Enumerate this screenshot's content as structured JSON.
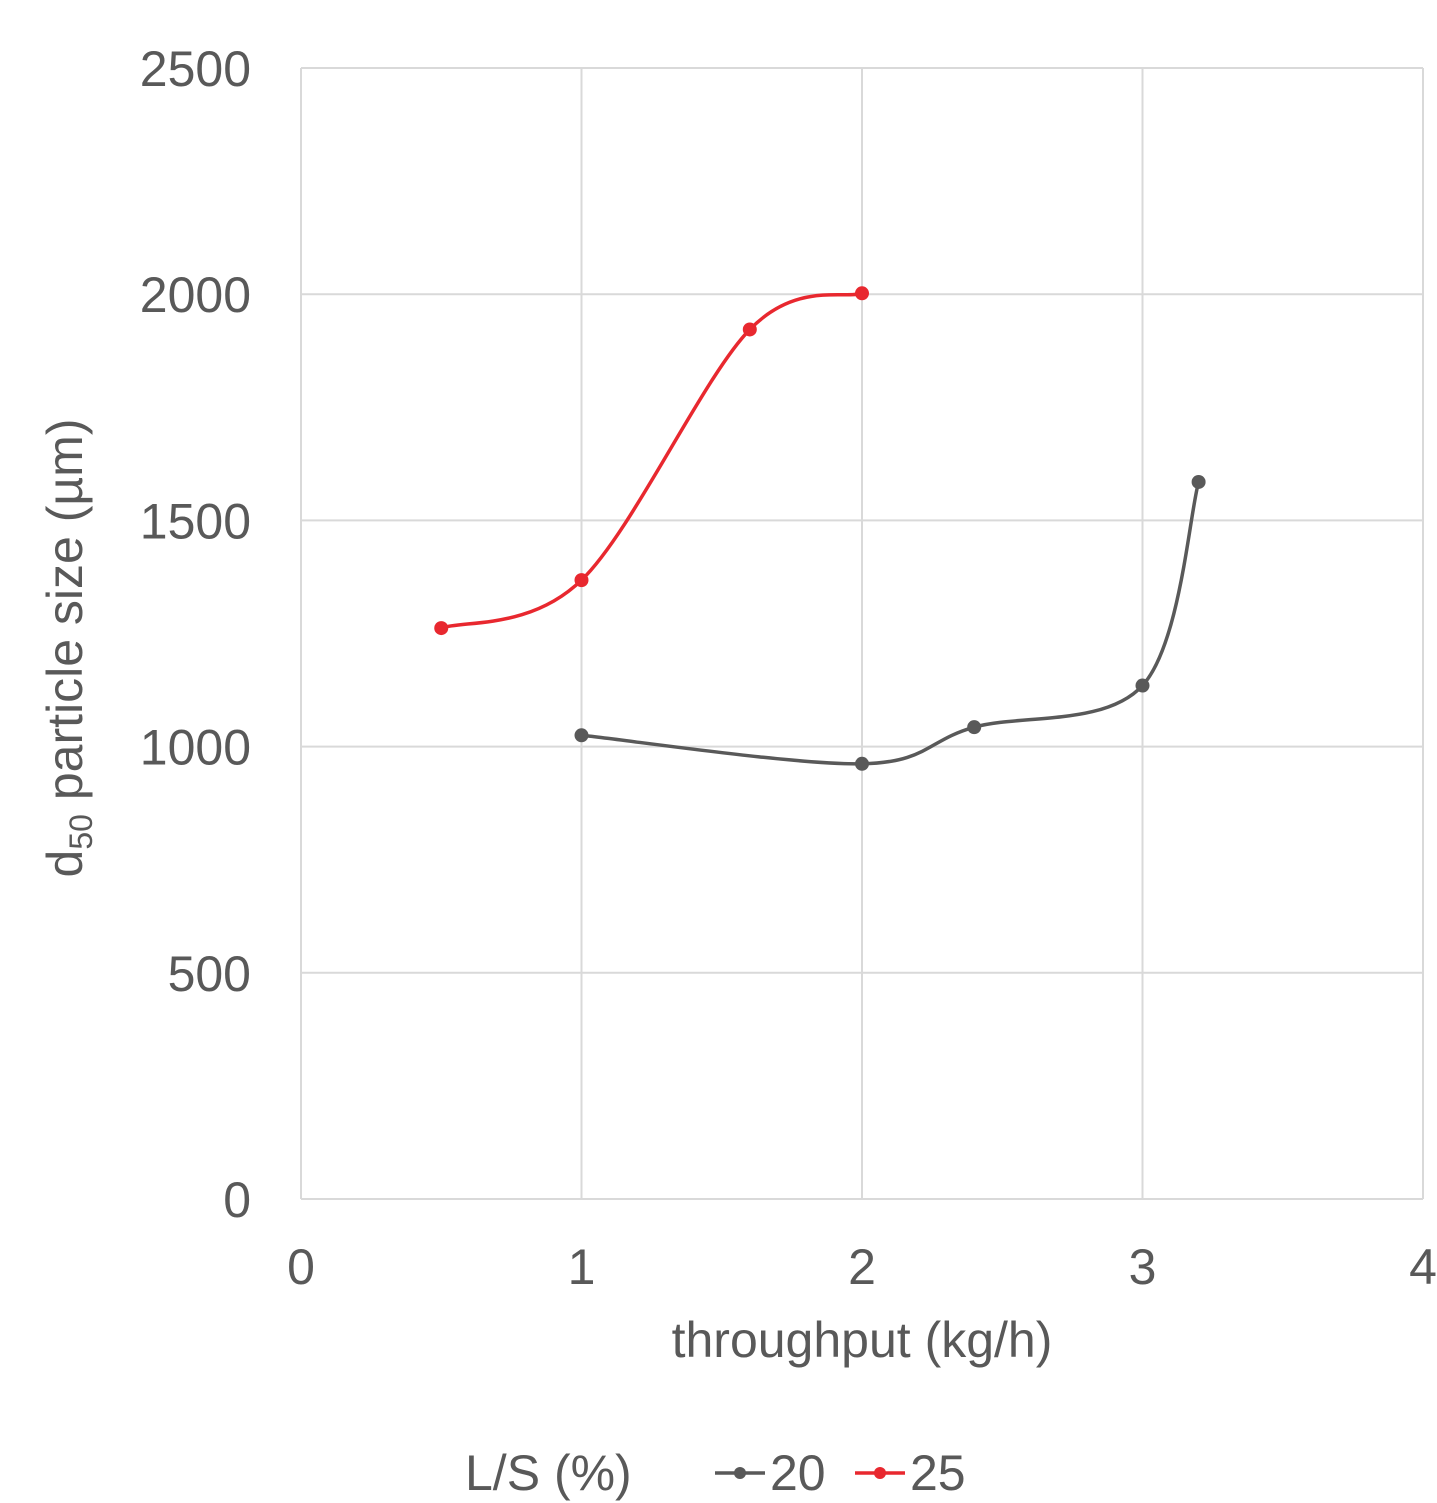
{
  "chart_data": {
    "type": "scatter",
    "xlabel": "throughput (kg/h)",
    "ylabel_main": "d",
    "ylabel_sub": "50",
    "ylabel_rest": " particle size (µm)",
    "xlim": [
      0,
      4
    ],
    "ylim": [
      0,
      2500
    ],
    "xticks": [
      "0",
      "1",
      "2",
      "3",
      "4"
    ],
    "yticks": [
      "0",
      "500",
      "1000",
      "1500",
      "2000",
      "2500"
    ],
    "grid": true,
    "smoothed_lines": true,
    "legend": {
      "position": "bottom",
      "title": "L/S (%)"
    },
    "series": [
      {
        "name": "20",
        "color": "#595959",
        "x": [
          1.0,
          2.0,
          2.4,
          3.0,
          3.2
        ],
        "y": [
          1025,
          962,
          1043,
          1135,
          1585
        ]
      },
      {
        "name": "25",
        "color": "#e8282f",
        "x": [
          0.5,
          1.0,
          1.6,
          2.0
        ],
        "y": [
          1262,
          1368,
          1922,
          2002
        ]
      }
    ]
  }
}
